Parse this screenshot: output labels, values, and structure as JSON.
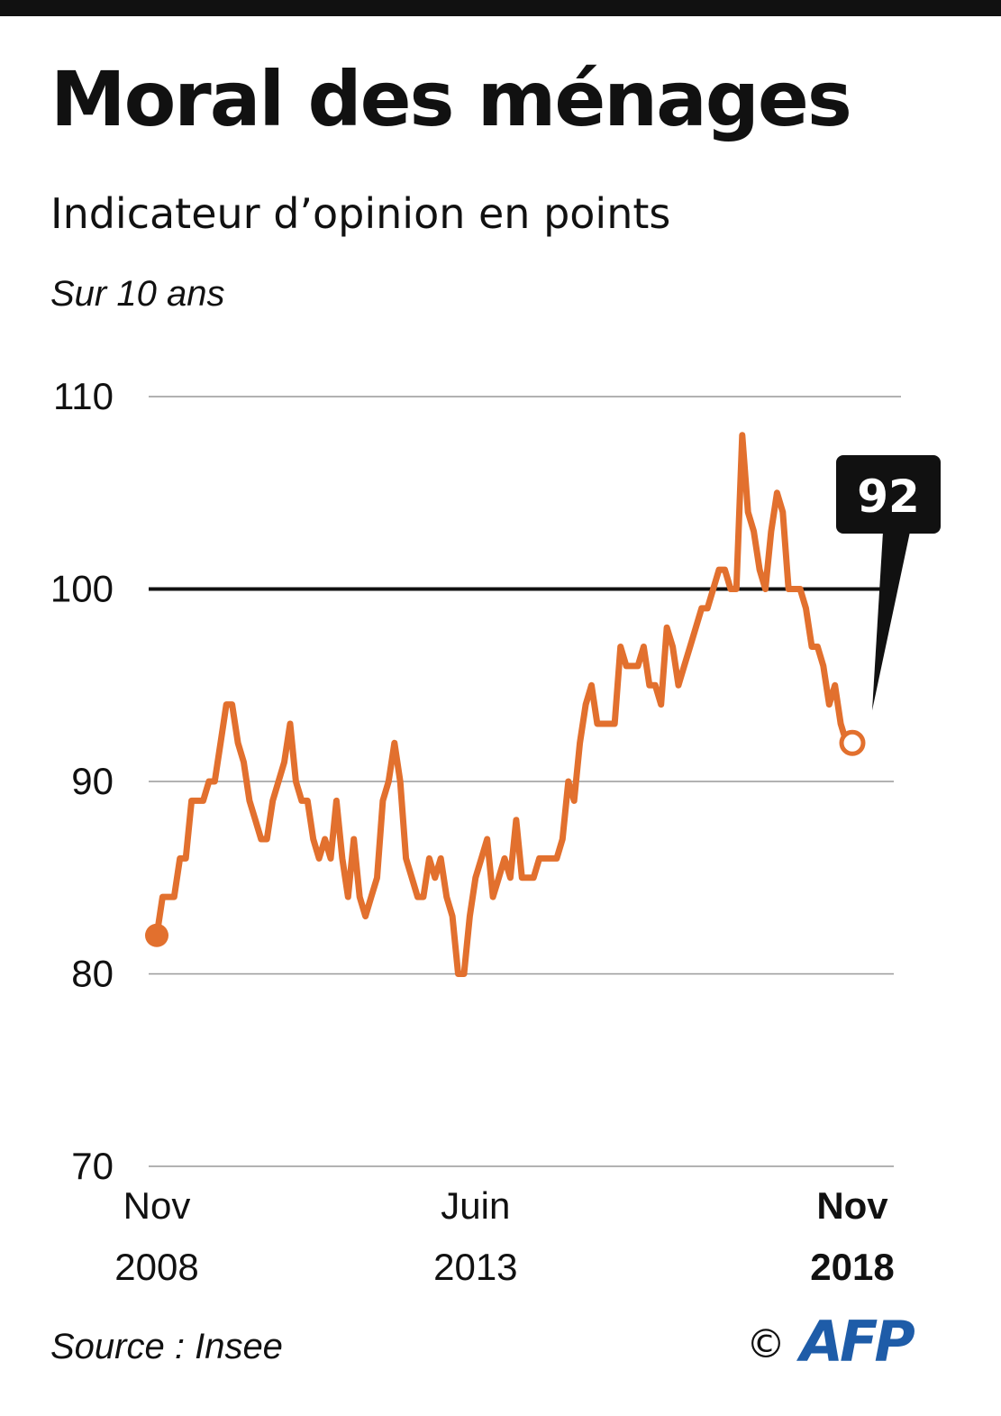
{
  "header": {
    "title": "Moral des ménages",
    "subtitle": "Indicateur d’opinion en points",
    "period": "Sur 10 ans"
  },
  "footer": {
    "source": "Source : Insee",
    "copyright": "©",
    "logo": "AFP"
  },
  "colors": {
    "line": "#e2702e",
    "reference_line": "#111111",
    "grid": "#999999",
    "callout_bg": "#111111",
    "logo": "#1e5ca8"
  },
  "chart_data": {
    "type": "line",
    "ylim": [
      70,
      110
    ],
    "yticks": [
      70,
      80,
      90,
      100,
      110
    ],
    "reference_line_value": 100,
    "grid": "horizontal",
    "xlim": [
      "2008-11",
      "2018-11"
    ],
    "xticks": [
      {
        "date": "2008-11",
        "month": "Nov",
        "year": "2008",
        "bold": false
      },
      {
        "date": "2013-06",
        "month": "Juin",
        "year": "2013",
        "bold": false
      },
      {
        "date": "2018-11",
        "month": "Nov",
        "year": "2018",
        "bold": true
      }
    ],
    "callout": {
      "label": "92",
      "date": "2018-11",
      "value": 92
    },
    "series": [
      {
        "name": "",
        "start_marker": "filled",
        "end_marker": "hollow",
        "points": [
          [
            "2008-11",
            82
          ],
          [
            "2008-12",
            84
          ],
          [
            "2009-01",
            84
          ],
          [
            "2009-02",
            84
          ],
          [
            "2009-03",
            86
          ],
          [
            "2009-04",
            86
          ],
          [
            "2009-05",
            89
          ],
          [
            "2009-06",
            89
          ],
          [
            "2009-07",
            89
          ],
          [
            "2009-08",
            90
          ],
          [
            "2009-09",
            90
          ],
          [
            "2009-10",
            92
          ],
          [
            "2009-11",
            94
          ],
          [
            "2009-12",
            94
          ],
          [
            "2010-01",
            92
          ],
          [
            "2010-02",
            91
          ],
          [
            "2010-03",
            89
          ],
          [
            "2010-04",
            88
          ],
          [
            "2010-05",
            87
          ],
          [
            "2010-06",
            87
          ],
          [
            "2010-07",
            89
          ],
          [
            "2010-08",
            90
          ],
          [
            "2010-09",
            91
          ],
          [
            "2010-10",
            93
          ],
          [
            "2010-11",
            90
          ],
          [
            "2010-12",
            89
          ],
          [
            "2011-01",
            89
          ],
          [
            "2011-02",
            87
          ],
          [
            "2011-03",
            86
          ],
          [
            "2011-04",
            87
          ],
          [
            "2011-05",
            86
          ],
          [
            "2011-06",
            89
          ],
          [
            "2011-07",
            86
          ],
          [
            "2011-08",
            84
          ],
          [
            "2011-09",
            87
          ],
          [
            "2011-10",
            84
          ],
          [
            "2011-11",
            83
          ],
          [
            "2011-12",
            84
          ],
          [
            "2012-01",
            85
          ],
          [
            "2012-02",
            89
          ],
          [
            "2012-03",
            90
          ],
          [
            "2012-04",
            92
          ],
          [
            "2012-05",
            90
          ],
          [
            "2012-06",
            86
          ],
          [
            "2012-07",
            85
          ],
          [
            "2012-08",
            84
          ],
          [
            "2012-09",
            84
          ],
          [
            "2012-10",
            86
          ],
          [
            "2012-11",
            85
          ],
          [
            "2012-12",
            86
          ],
          [
            "2013-01",
            84
          ],
          [
            "2013-02",
            83
          ],
          [
            "2013-03",
            80
          ],
          [
            "2013-04",
            80
          ],
          [
            "2013-05",
            83
          ],
          [
            "2013-06",
            85
          ],
          [
            "2013-07",
            86
          ],
          [
            "2013-08",
            87
          ],
          [
            "2013-09",
            84
          ],
          [
            "2013-10",
            85
          ],
          [
            "2013-11",
            86
          ],
          [
            "2013-12",
            85
          ],
          [
            "2014-01",
            88
          ],
          [
            "2014-02",
            85
          ],
          [
            "2014-03",
            85
          ],
          [
            "2014-04",
            85
          ],
          [
            "2014-05",
            86
          ],
          [
            "2014-06",
            86
          ],
          [
            "2014-07",
            86
          ],
          [
            "2014-08",
            86
          ],
          [
            "2014-09",
            87
          ],
          [
            "2014-10",
            90
          ],
          [
            "2014-11",
            89
          ],
          [
            "2014-12",
            92
          ],
          [
            "2015-01",
            94
          ],
          [
            "2015-02",
            95
          ],
          [
            "2015-03",
            93
          ],
          [
            "2015-04",
            93
          ],
          [
            "2015-05",
            93
          ],
          [
            "2015-06",
            93
          ],
          [
            "2015-07",
            97
          ],
          [
            "2015-08",
            96
          ],
          [
            "2015-09",
            96
          ],
          [
            "2015-10",
            96
          ],
          [
            "2015-11",
            97
          ],
          [
            "2015-12",
            95
          ],
          [
            "2016-01",
            95
          ],
          [
            "2016-02",
            94
          ],
          [
            "2016-03",
            98
          ],
          [
            "2016-04",
            97
          ],
          [
            "2016-05",
            95
          ],
          [
            "2016-06",
            96
          ],
          [
            "2016-07",
            97
          ],
          [
            "2016-08",
            98
          ],
          [
            "2016-09",
            99
          ],
          [
            "2016-10",
            99
          ],
          [
            "2016-11",
            100
          ],
          [
            "2016-12",
            101
          ],
          [
            "2017-01",
            101
          ],
          [
            "2017-02",
            100
          ],
          [
            "2017-03",
            100
          ],
          [
            "2017-04",
            108
          ],
          [
            "2017-05",
            104
          ],
          [
            "2017-06",
            103
          ],
          [
            "2017-07",
            101
          ],
          [
            "2017-08",
            100
          ],
          [
            "2017-09",
            103
          ],
          [
            "2017-10",
            105
          ],
          [
            "2017-11",
            104
          ],
          [
            "2017-12",
            100
          ],
          [
            "2018-01",
            100
          ],
          [
            "2018-02",
            100
          ],
          [
            "2018-03",
            99
          ],
          [
            "2018-04",
            97
          ],
          [
            "2018-05",
            97
          ],
          [
            "2018-06",
            96
          ],
          [
            "2018-07",
            94
          ],
          [
            "2018-08",
            95
          ],
          [
            "2018-09",
            93
          ],
          [
            "2018-10",
            92
          ],
          [
            "2018-11",
            92
          ]
        ]
      }
    ]
  }
}
